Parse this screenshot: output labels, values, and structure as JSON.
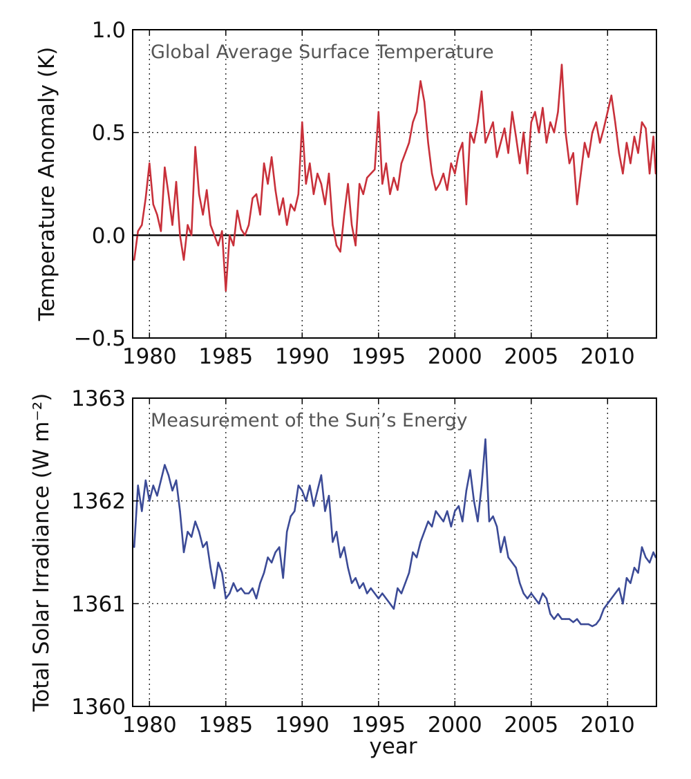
{
  "chart_data": [
    {
      "type": "line",
      "title": "Global Average Surface Temperature",
      "xlabel": "",
      "ylabel": "Temperature Anomaly (K)",
      "xlim": [
        1978.9,
        2013.2
      ],
      "ylim": [
        -0.5,
        1.0
      ],
      "xticks": [
        1980,
        1985,
        1990,
        1995,
        2000,
        2005,
        2010
      ],
      "xtick_labels": [
        "1980",
        "1985",
        "1990",
        "1995",
        "2000",
        "2005",
        "2010"
      ],
      "yticks": [
        -0.5,
        0.0,
        0.5,
        1.0
      ],
      "ytick_labels": [
        "−0.5",
        "0.0",
        "0.5",
        "1.0"
      ],
      "grid": true,
      "reference_line_y": 0.0,
      "color": "#c8303a",
      "series": [
        {
          "x": [
            1979.0,
            1979.25,
            1979.5,
            1979.75,
            1980.0,
            1980.25,
            1980.5,
            1980.75,
            1981.0,
            1981.25,
            1981.5,
            1981.75,
            1982.0,
            1982.25,
            1982.5,
            1982.75,
            1983.0,
            1983.25,
            1983.5,
            1983.75,
            1984.0,
            1984.25,
            1984.5,
            1984.75,
            1985.0,
            1985.25,
            1985.5,
            1985.75,
            1986.0,
            1986.25,
            1986.5,
            1986.75,
            1987.0,
            1987.25,
            1987.5,
            1987.75,
            1988.0,
            1988.25,
            1988.5,
            1988.75,
            1989.0,
            1989.25,
            1989.5,
            1989.75,
            1990.0,
            1990.25,
            1990.5,
            1990.75,
            1991.0,
            1991.25,
            1991.5,
            1991.75,
            1992.0,
            1992.25,
            1992.5,
            1992.75,
            1993.0,
            1993.25,
            1993.5,
            1993.75,
            1994.0,
            1994.25,
            1994.5,
            1994.75,
            1995.0,
            1995.25,
            1995.5,
            1995.75,
            1996.0,
            1996.25,
            1996.5,
            1996.75,
            1997.0,
            1997.25,
            1997.5,
            1997.75,
            1998.0,
            1998.25,
            1998.5,
            1998.75,
            1999.0,
            1999.25,
            1999.5,
            1999.75,
            2000.0,
            2000.25,
            2000.5,
            2000.75,
            2001.0,
            2001.25,
            2001.5,
            2001.75,
            2002.0,
            2002.25,
            2002.5,
            2002.75,
            2003.0,
            2003.25,
            2003.5,
            2003.75,
            2004.0,
            2004.25,
            2004.5,
            2004.75,
            2005.0,
            2005.25,
            2005.5,
            2005.75,
            2006.0,
            2006.25,
            2006.5,
            2006.75,
            2007.0,
            2007.25,
            2007.5,
            2007.75,
            2008.0,
            2008.25,
            2008.5,
            2008.75,
            2009.0,
            2009.25,
            2009.5,
            2009.75,
            2010.0,
            2010.25,
            2010.5,
            2010.75,
            2011.0,
            2011.25,
            2011.5,
            2011.75,
            2012.0,
            2012.25,
            2012.5,
            2012.75,
            2013.0,
            2013.15
          ],
          "y": [
            -0.12,
            0.02,
            0.05,
            0.18,
            0.35,
            0.15,
            0.1,
            0.02,
            0.33,
            0.2,
            0.05,
            0.26,
            0.0,
            -0.12,
            0.05,
            0.0,
            0.43,
            0.2,
            0.1,
            0.22,
            0.05,
            0.0,
            -0.05,
            0.02,
            -0.27,
            0.0,
            -0.05,
            0.12,
            0.03,
            0.0,
            0.05,
            0.18,
            0.2,
            0.1,
            0.35,
            0.25,
            0.38,
            0.22,
            0.1,
            0.18,
            0.05,
            0.15,
            0.12,
            0.2,
            0.55,
            0.25,
            0.35,
            0.2,
            0.3,
            0.25,
            0.15,
            0.3,
            0.05,
            -0.05,
            -0.08,
            0.1,
            0.25,
            0.05,
            -0.05,
            0.25,
            0.2,
            0.28,
            0.3,
            0.32,
            0.6,
            0.25,
            0.35,
            0.2,
            0.28,
            0.22,
            0.35,
            0.4,
            0.45,
            0.55,
            0.6,
            0.75,
            0.65,
            0.45,
            0.3,
            0.22,
            0.25,
            0.3,
            0.22,
            0.35,
            0.3,
            0.4,
            0.45,
            0.15,
            0.5,
            0.45,
            0.55,
            0.7,
            0.45,
            0.5,
            0.55,
            0.38,
            0.45,
            0.52,
            0.4,
            0.6,
            0.48,
            0.35,
            0.5,
            0.3,
            0.55,
            0.6,
            0.5,
            0.62,
            0.45,
            0.55,
            0.5,
            0.6,
            0.83,
            0.5,
            0.35,
            0.4,
            0.15,
            0.3,
            0.45,
            0.38,
            0.5,
            0.55,
            0.45,
            0.52,
            0.6,
            0.68,
            0.55,
            0.4,
            0.3,
            0.45,
            0.35,
            0.48,
            0.4,
            0.55,
            0.52,
            0.3,
            0.48,
            0.3
          ]
        }
      ]
    },
    {
      "type": "line",
      "title": "Measurement of the Sun’s Energy",
      "xlabel": "year",
      "ylabel": "Total Solar Irradiance (W m⁻²)",
      "xlim": [
        1978.9,
        2013.2
      ],
      "ylim": [
        1360,
        1363
      ],
      "xticks": [
        1980,
        1985,
        1990,
        1995,
        2000,
        2005,
        2010
      ],
      "xtick_labels": [
        "1980",
        "1985",
        "1990",
        "1995",
        "2000",
        "2005",
        "2010"
      ],
      "yticks": [
        1360,
        1361,
        1362,
        1363
      ],
      "ytick_labels": [
        "1360",
        "1361",
        "1362",
        "1363"
      ],
      "grid": true,
      "color": "#3b4a96",
      "series": [
        {
          "x": [
            1979.0,
            1979.25,
            1979.5,
            1979.75,
            1980.0,
            1980.25,
            1980.5,
            1980.75,
            1981.0,
            1981.25,
            1981.5,
            1981.75,
            1982.0,
            1982.25,
            1982.5,
            1982.75,
            1983.0,
            1983.25,
            1983.5,
            1983.75,
            1984.0,
            1984.25,
            1984.5,
            1984.75,
            1985.0,
            1985.25,
            1985.5,
            1985.75,
            1986.0,
            1986.25,
            1986.5,
            1986.75,
            1987.0,
            1987.25,
            1987.5,
            1987.75,
            1988.0,
            1988.25,
            1988.5,
            1988.75,
            1989.0,
            1989.25,
            1989.5,
            1989.75,
            1990.0,
            1990.25,
            1990.5,
            1990.75,
            1991.0,
            1991.25,
            1991.5,
            1991.75,
            1992.0,
            1992.25,
            1992.5,
            1992.75,
            1993.0,
            1993.25,
            1993.5,
            1993.75,
            1994.0,
            1994.25,
            1994.5,
            1994.75,
            1995.0,
            1995.25,
            1995.5,
            1995.75,
            1996.0,
            1996.25,
            1996.5,
            1996.75,
            1997.0,
            1997.25,
            1997.5,
            1997.75,
            1998.0,
            1998.25,
            1998.5,
            1998.75,
            1999.0,
            1999.25,
            1999.5,
            1999.75,
            2000.0,
            2000.25,
            2000.5,
            2000.75,
            2001.0,
            2001.25,
            2001.5,
            2001.75,
            2002.0,
            2002.25,
            2002.5,
            2002.75,
            2003.0,
            2003.25,
            2003.5,
            2003.75,
            2004.0,
            2004.25,
            2004.5,
            2004.75,
            2005.0,
            2005.25,
            2005.5,
            2005.75,
            2006.0,
            2006.25,
            2006.5,
            2006.75,
            2007.0,
            2007.25,
            2007.5,
            2007.75,
            2008.0,
            2008.25,
            2008.5,
            2008.75,
            2009.0,
            2009.25,
            2009.5,
            2009.75,
            2010.0,
            2010.25,
            2010.5,
            2010.75,
            2011.0,
            2011.25,
            2011.5,
            2011.75,
            2012.0,
            2012.25,
            2012.5,
            2012.75,
            2013.0,
            2013.15
          ],
          "y": [
            1361.55,
            1362.15,
            1361.9,
            1362.2,
            1362.0,
            1362.15,
            1362.05,
            1362.2,
            1362.35,
            1362.25,
            1362.1,
            1362.2,
            1361.9,
            1361.5,
            1361.7,
            1361.65,
            1361.8,
            1361.7,
            1361.55,
            1361.6,
            1361.35,
            1361.15,
            1361.4,
            1361.3,
            1361.05,
            1361.1,
            1361.2,
            1361.12,
            1361.15,
            1361.1,
            1361.1,
            1361.15,
            1361.05,
            1361.2,
            1361.3,
            1361.45,
            1361.4,
            1361.5,
            1361.55,
            1361.25,
            1361.7,
            1361.85,
            1361.9,
            1362.15,
            1362.1,
            1362.0,
            1362.15,
            1361.95,
            1362.1,
            1362.25,
            1361.9,
            1362.05,
            1361.6,
            1361.7,
            1361.45,
            1361.55,
            1361.35,
            1361.2,
            1361.25,
            1361.15,
            1361.2,
            1361.1,
            1361.15,
            1361.1,
            1361.05,
            1361.1,
            1361.05,
            1361.0,
            1360.95,
            1361.15,
            1361.1,
            1361.2,
            1361.3,
            1361.5,
            1361.45,
            1361.6,
            1361.7,
            1361.8,
            1361.75,
            1361.9,
            1361.85,
            1361.8,
            1361.9,
            1361.75,
            1361.9,
            1361.95,
            1361.8,
            1362.1,
            1362.3,
            1362.0,
            1361.8,
            1362.15,
            1362.6,
            1361.8,
            1361.85,
            1361.75,
            1361.5,
            1361.65,
            1361.45,
            1361.4,
            1361.35,
            1361.2,
            1361.1,
            1361.05,
            1361.1,
            1361.05,
            1361.0,
            1361.1,
            1361.05,
            1360.9,
            1360.85,
            1360.9,
            1360.85,
            1360.85,
            1360.85,
            1360.82,
            1360.85,
            1360.8,
            1360.8,
            1360.8,
            1360.78,
            1360.8,
            1360.85,
            1360.95,
            1361.0,
            1361.05,
            1361.1,
            1361.15,
            1361.0,
            1361.25,
            1361.2,
            1361.35,
            1361.3,
            1361.55,
            1361.45,
            1361.4,
            1361.5,
            1361.45
          ]
        }
      ]
    }
  ]
}
